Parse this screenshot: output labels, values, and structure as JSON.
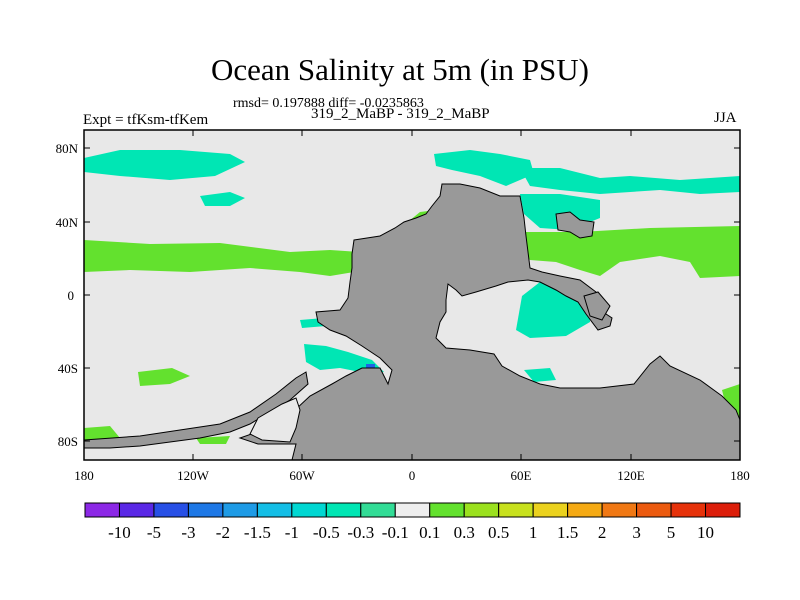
{
  "map": {
    "title": "Ocean Salinity at 5m (in PSU)",
    "subtitle": "rmsd= 0.197888 diff= -0.0235863",
    "left_label": "Expt = tfKsm-tfKem",
    "center_label": "319_2_MaBP - 319_2_MaBP",
    "right_label": "JJA",
    "lat_ticks": [
      "80N",
      "40N",
      "0",
      "40S",
      "80S"
    ],
    "lon_ticks": [
      "180",
      "120W",
      "60W",
      "0",
      "60E",
      "120E",
      "180"
    ],
    "colors": {
      "land": "#999999",
      "ocean_neutral": "#e8e8e8",
      "fresh": "#00e6b4",
      "salty": "#63e12e",
      "deep_fresh": "#1e64e6"
    }
  },
  "colorbar": {
    "labels": [
      "-10",
      "-5",
      "-3",
      "-2",
      "-1.5",
      "-1",
      "-0.5",
      "-0.3",
      "-0.1",
      "0.1",
      "0.3",
      "0.5",
      "1",
      "1.5",
      "2",
      "3",
      "5",
      "10"
    ],
    "colors": [
      "#8c28e6",
      "#5a28e6",
      "#2850e6",
      "#1e78e6",
      "#1e9be6",
      "#14bee6",
      "#00d7d2",
      "#00e6b4",
      "#32dc96",
      "#eeeeee",
      "#63e12e",
      "#9be11e",
      "#c8e11e",
      "#ebd21e",
      "#f5aa14",
      "#f07814",
      "#eb5a0f",
      "#e6320a",
      "#dc1e0a"
    ]
  }
}
